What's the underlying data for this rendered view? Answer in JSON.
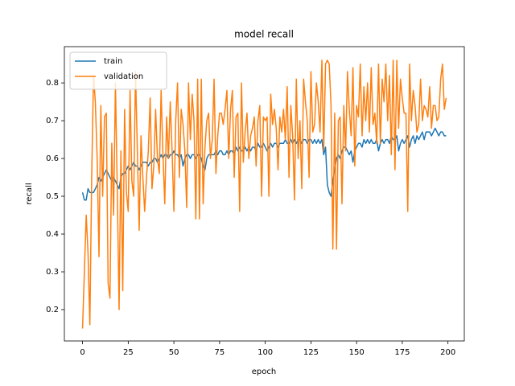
{
  "chart_data": {
    "type": "line",
    "title": "model recall",
    "xlabel": "epoch",
    "ylabel": "recall",
    "x": [
      0,
      1,
      2,
      3,
      4,
      5,
      6,
      7,
      8,
      9,
      10,
      11,
      12,
      13,
      14,
      15,
      16,
      17,
      18,
      19,
      20,
      21,
      22,
      23,
      24,
      25,
      26,
      27,
      28,
      29,
      30,
      31,
      32,
      33,
      34,
      35,
      36,
      37,
      38,
      39,
      40,
      41,
      42,
      43,
      44,
      45,
      46,
      47,
      48,
      49,
      50,
      51,
      52,
      53,
      54,
      55,
      56,
      57,
      58,
      59,
      60,
      61,
      62,
      63,
      64,
      65,
      66,
      67,
      68,
      69,
      70,
      71,
      72,
      73,
      74,
      75,
      76,
      77,
      78,
      79,
      80,
      81,
      82,
      83,
      84,
      85,
      86,
      87,
      88,
      89,
      90,
      91,
      92,
      93,
      94,
      95,
      96,
      97,
      98,
      99,
      100,
      101,
      102,
      103,
      104,
      105,
      106,
      107,
      108,
      109,
      110,
      111,
      112,
      113,
      114,
      115,
      116,
      117,
      118,
      119,
      120,
      121,
      122,
      123,
      124,
      125,
      126,
      127,
      128,
      129,
      130,
      131,
      132,
      133,
      134,
      135,
      136,
      137,
      138,
      139,
      140,
      141,
      142,
      143,
      144,
      145,
      146,
      147,
      148,
      149,
      150,
      151,
      152,
      153,
      154,
      155,
      156,
      157,
      158,
      159,
      160,
      161,
      162,
      163,
      164,
      165,
      166,
      167,
      168,
      169,
      170,
      171,
      172,
      173,
      174,
      175,
      176,
      177,
      178,
      179,
      180,
      181,
      182,
      183,
      184,
      185,
      186,
      187,
      188,
      189,
      190,
      191,
      192,
      193,
      194,
      195,
      196,
      197,
      198,
      199
    ],
    "series": [
      {
        "name": "train",
        "color": "#1f77b4",
        "values": [
          0.51,
          0.49,
          0.49,
          0.52,
          0.51,
          0.51,
          0.51,
          0.52,
          0.53,
          0.55,
          0.54,
          0.55,
          0.56,
          0.57,
          0.56,
          0.55,
          0.54,
          0.55,
          0.54,
          0.53,
          0.52,
          0.55,
          0.56,
          0.56,
          0.57,
          0.58,
          0.57,
          0.58,
          0.59,
          0.58,
          0.58,
          0.57,
          0.58,
          0.59,
          0.59,
          0.59,
          0.58,
          0.59,
          0.59,
          0.6,
          0.6,
          0.59,
          0.6,
          0.61,
          0.6,
          0.61,
          0.61,
          0.6,
          0.61,
          0.61,
          0.62,
          0.61,
          0.61,
          0.6,
          0.61,
          0.58,
          0.6,
          0.61,
          0.61,
          0.6,
          0.61,
          0.61,
          0.6,
          0.61,
          0.61,
          0.6,
          0.58,
          0.57,
          0.6,
          0.61,
          0.61,
          0.61,
          0.61,
          0.62,
          0.61,
          0.62,
          0.62,
          0.61,
          0.61,
          0.62,
          0.61,
          0.62,
          0.62,
          0.61,
          0.63,
          0.62,
          0.63,
          0.62,
          0.62,
          0.63,
          0.62,
          0.63,
          0.62,
          0.63,
          0.63,
          0.62,
          0.64,
          0.63,
          0.63,
          0.64,
          0.63,
          0.62,
          0.63,
          0.64,
          0.63,
          0.64,
          0.64,
          0.63,
          0.64,
          0.64,
          0.64,
          0.65,
          0.64,
          0.64,
          0.65,
          0.64,
          0.65,
          0.64,
          0.65,
          0.65,
          0.64,
          0.65,
          0.65,
          0.64,
          0.65,
          0.65,
          0.64,
          0.65,
          0.64,
          0.65,
          0.64,
          0.65,
          0.61,
          0.63,
          0.53,
          0.51,
          0.5,
          0.54,
          0.57,
          0.6,
          0.61,
          0.6,
          0.62,
          0.63,
          0.63,
          0.62,
          0.61,
          0.62,
          0.59,
          0.62,
          0.63,
          0.64,
          0.64,
          0.63,
          0.65,
          0.64,
          0.65,
          0.64,
          0.65,
          0.64,
          0.64,
          0.65,
          0.62,
          0.64,
          0.65,
          0.64,
          0.65,
          0.65,
          0.64,
          0.66,
          0.65,
          0.65,
          0.66,
          0.62,
          0.64,
          0.65,
          0.64,
          0.65,
          0.66,
          0.63,
          0.65,
          0.66,
          0.64,
          0.66,
          0.65,
          0.66,
          0.67,
          0.65,
          0.67,
          0.67,
          0.67,
          0.66,
          0.67,
          0.68,
          0.67,
          0.66,
          0.67,
          0.67,
          0.66,
          0.66
        ]
      },
      {
        "name": "validation",
        "color": "#ff7f0e",
        "values": [
          0.15,
          0.3,
          0.45,
          0.35,
          0.16,
          0.55,
          0.82,
          0.75,
          0.6,
          0.34,
          0.74,
          0.5,
          0.71,
          0.72,
          0.27,
          0.23,
          0.64,
          0.45,
          0.8,
          0.52,
          0.2,
          0.62,
          0.25,
          0.73,
          0.51,
          0.46,
          0.78,
          0.54,
          0.5,
          0.83,
          0.62,
          0.41,
          0.66,
          0.55,
          0.46,
          0.55,
          0.62,
          0.76,
          0.52,
          0.58,
          0.73,
          0.6,
          0.56,
          0.78,
          0.61,
          0.48,
          0.71,
          0.6,
          0.75,
          0.62,
          0.46,
          0.7,
          0.8,
          0.55,
          0.73,
          0.69,
          0.62,
          0.47,
          0.8,
          0.65,
          0.77,
          0.7,
          0.44,
          0.81,
          0.44,
          0.81,
          0.48,
          0.63,
          0.7,
          0.72,
          0.6,
          0.65,
          0.81,
          0.56,
          0.66,
          0.72,
          0.72,
          0.69,
          0.73,
          0.78,
          0.6,
          0.73,
          0.78,
          0.55,
          0.71,
          0.72,
          0.46,
          0.8,
          0.59,
          0.67,
          0.72,
          0.6,
          0.66,
          0.68,
          0.71,
          0.58,
          0.7,
          0.74,
          0.5,
          0.71,
          0.7,
          0.71,
          0.5,
          0.77,
          0.69,
          0.73,
          0.68,
          0.57,
          0.71,
          0.67,
          0.73,
          0.65,
          0.79,
          0.55,
          0.74,
          0.66,
          0.49,
          0.81,
          0.6,
          0.7,
          0.52,
          0.81,
          0.75,
          0.7,
          0.55,
          0.83,
          0.67,
          0.69,
          0.8,
          0.75,
          0.67,
          0.86,
          0.62,
          0.85,
          0.86,
          0.85,
          0.74,
          0.36,
          0.72,
          0.36,
          0.7,
          0.71,
          0.48,
          0.74,
          0.62,
          0.83,
          0.73,
          0.66,
          0.84,
          0.58,
          0.74,
          0.71,
          0.85,
          0.66,
          0.79,
          0.7,
          0.8,
          0.67,
          0.84,
          0.69,
          0.72,
          0.64,
          0.85,
          0.64,
          0.81,
          0.75,
          0.85,
          0.7,
          0.82,
          0.61,
          0.86,
          0.57,
          0.86,
          0.68,
          0.81,
          0.76,
          0.72,
          0.72,
          0.46,
          0.85,
          0.7,
          0.78,
          0.74,
          0.67,
          0.69,
          0.81,
          0.7,
          0.74,
          0.73,
          0.71,
          0.79,
          0.68,
          0.74,
          0.74,
          0.7,
          0.71,
          0.81,
          0.85,
          0.73,
          0.76
        ]
      }
    ],
    "xlim": [
      -9.95,
      208.95
    ],
    "ylim": [
      0.117,
      0.896
    ],
    "xticks": [
      0,
      25,
      50,
      75,
      100,
      125,
      150,
      175,
      200
    ],
    "yticks": [
      0.2,
      0.3,
      0.4,
      0.5,
      0.6,
      0.7,
      0.8
    ],
    "legend": "upper left"
  }
}
